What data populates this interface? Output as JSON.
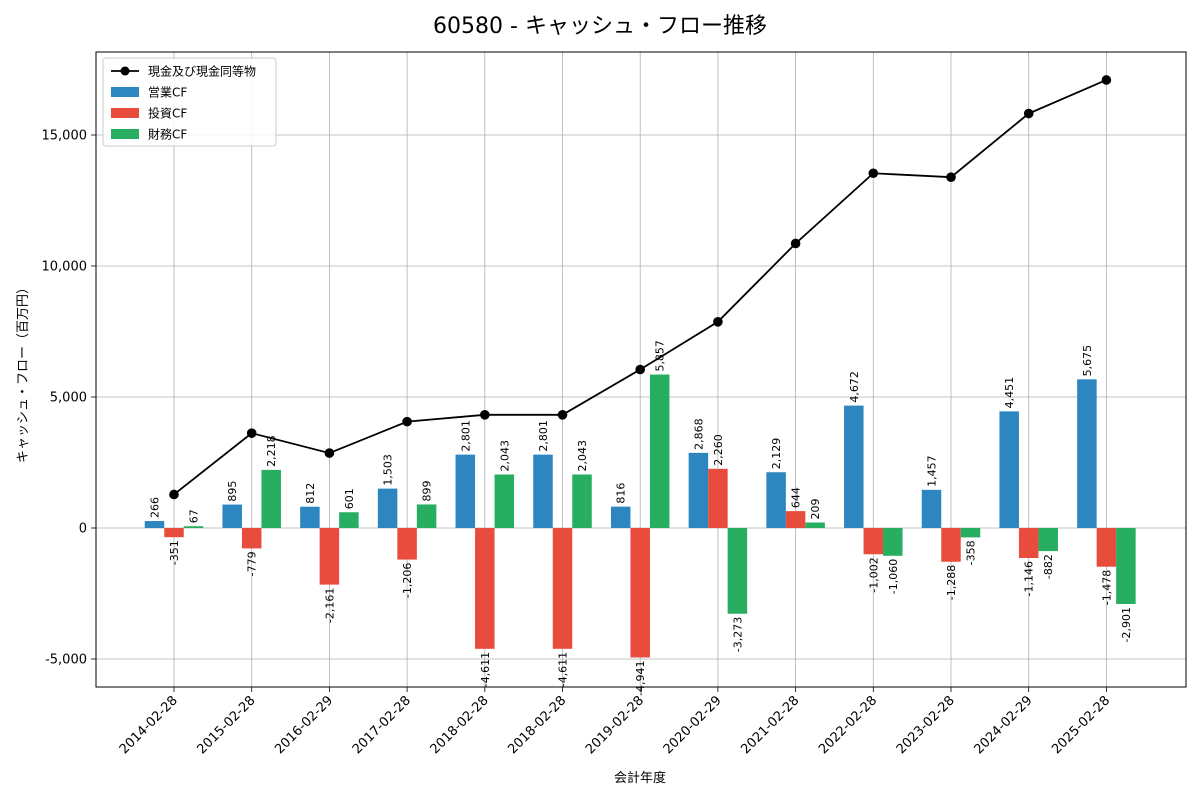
{
  "chart_data": {
    "type": "bar",
    "title": "60580 - キャッシュ・フロー推移",
    "xlabel": "会計年度",
    "ylabel": "キャッシュ・フロー（百万円）",
    "ylim": [
      -6000,
      18000
    ],
    "yticks": [
      -5000,
      0,
      5000,
      10000,
      15000
    ],
    "ytick_labels": [
      "-5,000",
      "0",
      "5,000",
      "10,000",
      "15,000"
    ],
    "grid": true,
    "legend_position": "top-left",
    "categories": [
      "2014-02-28",
      "2015-02-28",
      "2016-02-29",
      "2017-02-28",
      "2018-02-28",
      "2018-02-28",
      "2019-02-28",
      "2020-02-29",
      "2021-02-28",
      "2022-02-28",
      "2023-02-28",
      "2024-02-29",
      "2025-02-28"
    ],
    "series": [
      {
        "name": "営業CF",
        "type": "bar",
        "color": "#2e86c1",
        "values": [
          266,
          895,
          812,
          1503,
          2801,
          2801,
          816,
          2868,
          2129,
          4672,
          1457,
          4451,
          5675
        ],
        "labels": [
          "266",
          "895",
          "812",
          "1,503",
          "2,801",
          "2,801",
          "816",
          "2,868",
          "2,129",
          "4,672",
          "1,457",
          "4,451",
          "5,675"
        ]
      },
      {
        "name": "投資CF",
        "type": "bar",
        "color": "#e74c3c",
        "values": [
          -351,
          -779,
          -2161,
          -1206,
          -4611,
          -4611,
          -4941,
          2260,
          644,
          -1002,
          -1288,
          -1146,
          -1478
        ],
        "labels": [
          "-351",
          "-779",
          "-2,161",
          "-1,206",
          "-4,611",
          "-4,611",
          "-4,941",
          "2,260",
          "644",
          "-1,002",
          "-1,288",
          "-1,146",
          "-1,478"
        ]
      },
      {
        "name": "財務CF",
        "type": "bar",
        "color": "#27ae60",
        "values": [
          67,
          2218,
          601,
          899,
          2043,
          2043,
          5857,
          -3273,
          209,
          -1060,
          -358,
          -882,
          -2901
        ],
        "labels": [
          "67",
          "2,218",
          "601",
          "899",
          "2,043",
          "2,043",
          "5,857",
          "-3,273",
          "209",
          "-1,060",
          "-358",
          "-882",
          "-2,901"
        ]
      },
      {
        "name": "現金及び現金同等物",
        "type": "line",
        "color": "#000000",
        "values": [
          1280,
          3620,
          2860,
          4060,
          4320,
          4320,
          6050,
          7870,
          10860,
          13540,
          13390,
          15820,
          17100
        ]
      }
    ]
  }
}
